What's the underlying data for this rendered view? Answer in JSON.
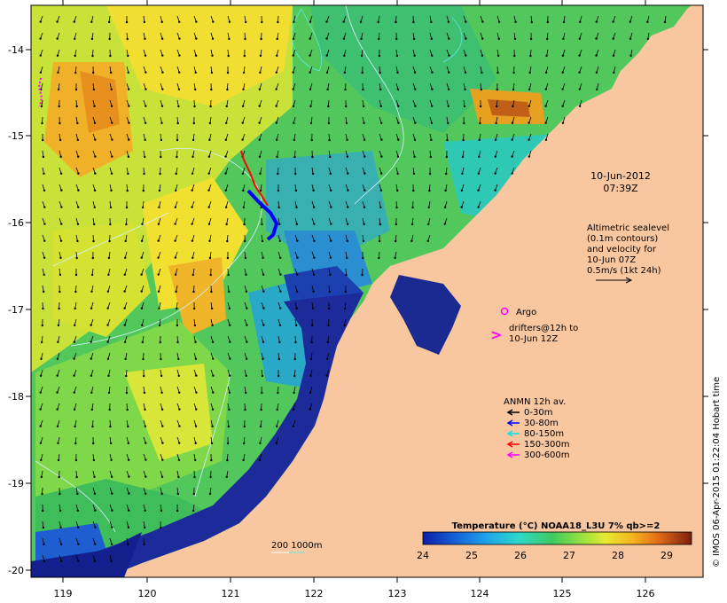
{
  "map": {
    "axes": {
      "x_ticks": [
        "119",
        "120",
        "121",
        "122",
        "123",
        "124",
        "125",
        "126"
      ],
      "y_ticks": [
        "-14",
        "-15",
        "-16",
        "-17",
        "-18",
        "-19",
        "-20"
      ]
    },
    "date_label": "10-Jun-2012",
    "time_label": "07:39Z",
    "altimetry_note": [
      "Altimetric sealevel",
      "(0.1m contours)",
      "and velocity for",
      "10-Jun 07Z",
      "0.5m/s (1kt 24h)"
    ],
    "argo_label": "Argo",
    "drifters_label": [
      "drifters@12h to",
      "10-Jun 12Z"
    ],
    "anmn": {
      "title": "ANMN 12h av.",
      "items": [
        {
          "label": "0-30m",
          "color": "#000000"
        },
        {
          "label": "30-80m",
          "color": "#0000ff"
        },
        {
          "label": "80-150m",
          "color": "#00e5e5"
        },
        {
          "label": "150-300m",
          "color": "#ff0000"
        },
        {
          "label": "300-600m",
          "color": "#ff00ff"
        }
      ]
    },
    "depth_contours_label": "200  1000m",
    "colorbar": {
      "title": "Temperature (°C) NOAA18_L3U 7% qb>=2",
      "ticks": [
        "24",
        "25",
        "26",
        "27",
        "28",
        "29"
      ]
    },
    "credit": "© IMOS 06-Apr-2015 01:22:04 Hobart time",
    "colors": {
      "land": "#f9c79f",
      "warm": "#f0a020",
      "cool": "#1f2a9c"
    }
  }
}
